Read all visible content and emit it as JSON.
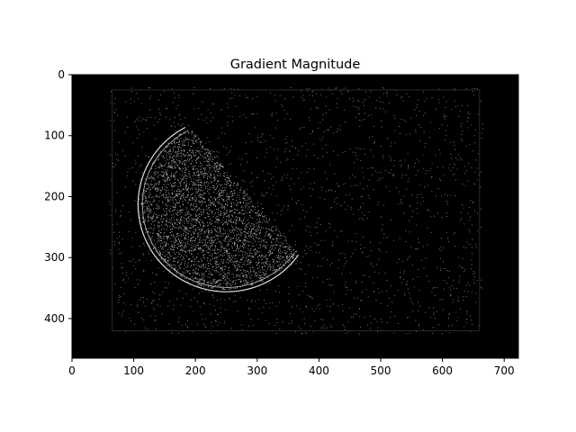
{
  "chart_data": {
    "type": "image",
    "title": "Gradient Magnitude",
    "image_size": {
      "width": 723,
      "height": 465
    },
    "xlim": [
      0,
      723
    ],
    "ylim": [
      465,
      0
    ],
    "y_axis_inverted": true,
    "colormap": "gray",
    "x_ticks": [
      0,
      100,
      200,
      300,
      400,
      500,
      600,
      700
    ],
    "x_tick_labels": [
      "0",
      "100",
      "200",
      "300",
      "400",
      "500",
      "600",
      "700"
    ],
    "y_ticks": [
      0,
      100,
      200,
      300,
      400
    ],
    "y_tick_labels": [
      "0",
      "100",
      "200",
      "300",
      "400"
    ],
    "features": {
      "half_disc_edge": {
        "center": [
          250,
          213
        ],
        "radius": 145,
        "cut_line": [
          [
            175,
            70
          ],
          [
            380,
            305
          ]
        ],
        "description": "bright dense edge texture forming a half-disc"
      },
      "noise_region": {
        "x_range": [
          60,
          665
        ],
        "y_range": [
          20,
          425
        ]
      },
      "faint_border": {
        "x_range": [
          65,
          660
        ],
        "y_range": [
          25,
          420
        ]
      }
    },
    "background_color": "#000000"
  }
}
